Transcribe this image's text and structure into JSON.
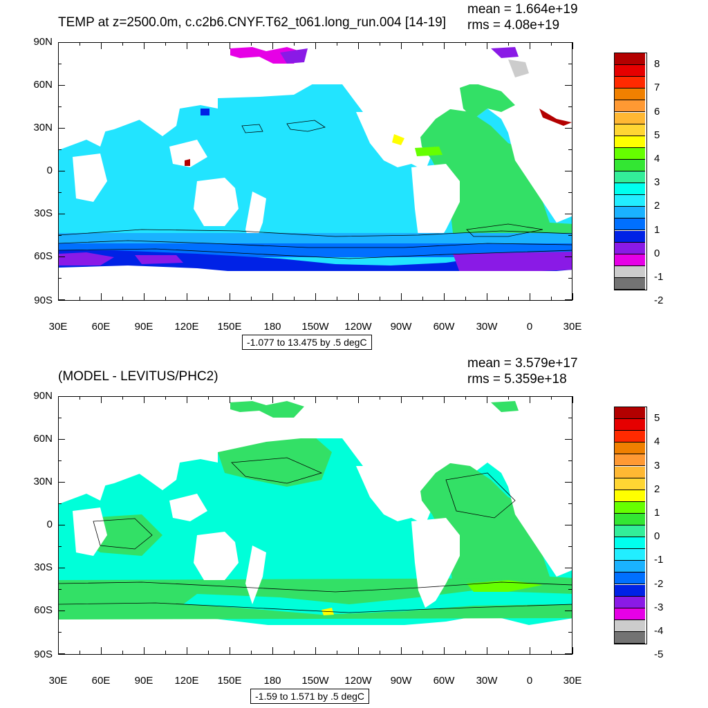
{
  "top": {
    "title": "TEMP at z=2500.0m, c.c2b6.CNYF.T62_t061.long_run.004 [14-19]",
    "mean": "mean = 1.664e+19",
    "rms": "rms = 4.08e+19",
    "range": "-1.077 to 13.475 by .5 degC",
    "legend_labels": [
      "8",
      "7",
      "6",
      "5",
      "4",
      "3",
      "2",
      "1",
      "0",
      "-1",
      "-2"
    ],
    "legend_colors": [
      "#b30000",
      "#e60000",
      "#ff2a00",
      "#f08000",
      "#ff9933",
      "#ffb833",
      "#ffd633",
      "#ffff00",
      "#66ff00",
      "#33e633",
      "#33ee99",
      "#00ffee",
      "#22eeff",
      "#1ab2ff",
      "#0070ff",
      "#0022e6",
      "#8a1ae6",
      "#e600e6",
      "#cccccc",
      "#737373"
    ]
  },
  "bottom": {
    "title": "(MODEL - LEVITUS/PHC2)",
    "mean": "mean = 3.579e+17",
    "rms": "rms = 5.359e+18",
    "range": "-1.59 to 1.571 by .5 degC",
    "legend_labels": [
      "5",
      "4",
      "3",
      "2",
      "1",
      "0",
      "-1",
      "-2",
      "-3",
      "-4",
      "-5"
    ],
    "legend_colors": [
      "#b30000",
      "#e60000",
      "#ff2a00",
      "#f08000",
      "#ff9933",
      "#ffb833",
      "#ffd633",
      "#ffff00",
      "#66ff00",
      "#33e633",
      "#33ee99",
      "#00ffee",
      "#22eeff",
      "#1ab2ff",
      "#0070ff",
      "#0022e6",
      "#8a1ae6",
      "#e600e6",
      "#cccccc",
      "#737373"
    ]
  },
  "lat_labels": [
    "90N",
    "60N",
    "30N",
    "0",
    "30S",
    "60S",
    "90S"
  ],
  "lon_labels": [
    "30E",
    "60E",
    "90E",
    "120E",
    "150E",
    "180",
    "150W",
    "120W",
    "90W",
    "60W",
    "30W",
    "0",
    "30E"
  ]
}
